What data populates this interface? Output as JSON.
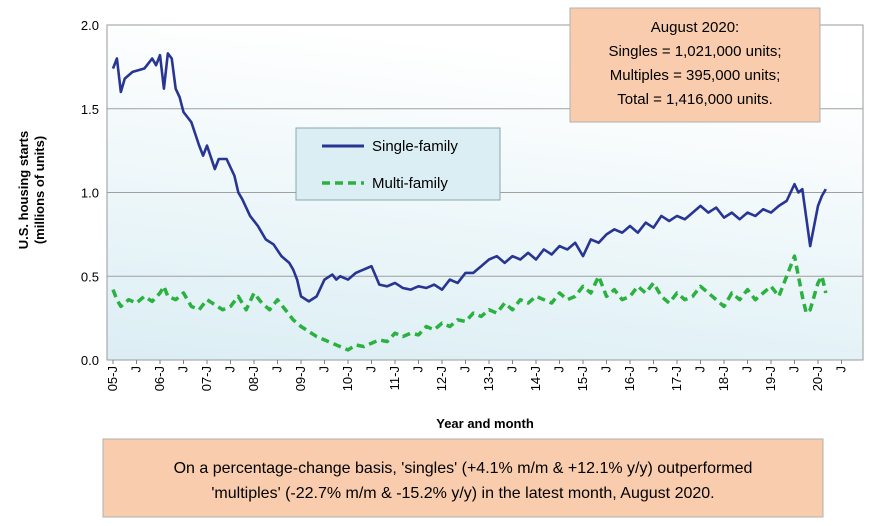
{
  "chart_data": {
    "type": "line",
    "title": "",
    "xlabel": "Year and month",
    "ylabel": "U.S. housing starts (millions of units)",
    "ylabel_lines": [
      "U.S. housing starts",
      "(millions of units)"
    ],
    "ylim": [
      0,
      2.0
    ],
    "yticks": [
      "0.0",
      "0.5",
      "1.0",
      "1.5",
      "2.0"
    ],
    "x_start": "2005-01",
    "x_end": "2020-08",
    "xtick_labels": [
      "05-J",
      "J",
      "06-J",
      "J",
      "07-J",
      "J",
      "08-J",
      "J",
      "09-J",
      "J",
      "10-J",
      "J",
      "11-J",
      "J",
      "12-J",
      "J",
      "13-J",
      "J",
      "14-J",
      "J",
      "15-J",
      "J",
      "16-J",
      "J",
      "17-J",
      "J",
      "18-J",
      "J",
      "19-J",
      "J",
      "20-J",
      "J"
    ],
    "grid": true,
    "legend_position": "upper-middle",
    "series": [
      {
        "name": "Single-family",
        "color": "#283593",
        "style": "solid",
        "keypoints": [
          [
            0,
            1.74
          ],
          [
            1,
            1.8
          ],
          [
            2,
            1.6
          ],
          [
            3,
            1.68
          ],
          [
            5,
            1.72
          ],
          [
            8,
            1.74
          ],
          [
            10,
            1.8
          ],
          [
            11,
            1.76
          ],
          [
            12,
            1.82
          ],
          [
            13,
            1.62
          ],
          [
            14,
            1.83
          ],
          [
            15,
            1.8
          ],
          [
            16,
            1.62
          ],
          [
            17,
            1.57
          ],
          [
            18,
            1.48
          ],
          [
            20,
            1.42
          ],
          [
            21,
            1.35
          ],
          [
            22,
            1.28
          ],
          [
            23,
            1.22
          ],
          [
            24,
            1.28
          ],
          [
            26,
            1.14
          ],
          [
            27,
            1.2
          ],
          [
            29,
            1.2
          ],
          [
            30,
            1.15
          ],
          [
            31,
            1.1
          ],
          [
            32,
            1.0
          ],
          [
            33,
            0.96
          ],
          [
            35,
            0.86
          ],
          [
            37,
            0.8
          ],
          [
            39,
            0.72
          ],
          [
            41,
            0.69
          ],
          [
            43,
            0.62
          ],
          [
            45,
            0.58
          ],
          [
            46,
            0.54
          ],
          [
            47,
            0.48
          ],
          [
            48,
            0.38
          ],
          [
            50,
            0.35
          ],
          [
            52,
            0.38
          ],
          [
            54,
            0.48
          ],
          [
            56,
            0.51
          ],
          [
            57,
            0.48
          ],
          [
            58,
            0.5
          ],
          [
            60,
            0.48
          ],
          [
            62,
            0.52
          ],
          [
            64,
            0.54
          ],
          [
            66,
            0.56
          ],
          [
            68,
            0.45
          ],
          [
            70,
            0.44
          ],
          [
            72,
            0.46
          ],
          [
            74,
            0.43
          ],
          [
            76,
            0.42
          ],
          [
            78,
            0.44
          ],
          [
            80,
            0.43
          ],
          [
            82,
            0.45
          ],
          [
            84,
            0.42
          ],
          [
            86,
            0.48
          ],
          [
            88,
            0.46
          ],
          [
            90,
            0.52
          ],
          [
            92,
            0.52
          ],
          [
            94,
            0.56
          ],
          [
            96,
            0.6
          ],
          [
            98,
            0.62
          ],
          [
            100,
            0.58
          ],
          [
            102,
            0.62
          ],
          [
            104,
            0.6
          ],
          [
            106,
            0.64
          ],
          [
            108,
            0.6
          ],
          [
            110,
            0.66
          ],
          [
            112,
            0.63
          ],
          [
            114,
            0.68
          ],
          [
            116,
            0.66
          ],
          [
            118,
            0.7
          ],
          [
            120,
            0.62
          ],
          [
            122,
            0.72
          ],
          [
            124,
            0.7
          ],
          [
            126,
            0.75
          ],
          [
            128,
            0.78
          ],
          [
            130,
            0.76
          ],
          [
            132,
            0.8
          ],
          [
            134,
            0.76
          ],
          [
            136,
            0.82
          ],
          [
            138,
            0.79
          ],
          [
            140,
            0.86
          ],
          [
            142,
            0.83
          ],
          [
            144,
            0.86
          ],
          [
            146,
            0.84
          ],
          [
            148,
            0.88
          ],
          [
            150,
            0.92
          ],
          [
            152,
            0.88
          ],
          [
            154,
            0.91
          ],
          [
            156,
            0.85
          ],
          [
            158,
            0.88
          ],
          [
            160,
            0.84
          ],
          [
            162,
            0.88
          ],
          [
            164,
            0.86
          ],
          [
            166,
            0.9
          ],
          [
            168,
            0.88
          ],
          [
            170,
            0.92
          ],
          [
            172,
            0.95
          ],
          [
            174,
            1.05
          ],
          [
            175,
            1.0
          ],
          [
            176,
            1.02
          ],
          [
            177,
            0.85
          ],
          [
            178,
            0.68
          ],
          [
            179,
            0.8
          ],
          [
            180,
            0.92
          ],
          [
            181,
            0.98
          ],
          [
            182,
            1.02
          ]
        ]
      },
      {
        "name": "Multi-family",
        "color": "#2ab13f",
        "style": "dashed",
        "keypoints": [
          [
            0,
            0.42
          ],
          [
            1,
            0.36
          ],
          [
            2,
            0.32
          ],
          [
            4,
            0.36
          ],
          [
            6,
            0.34
          ],
          [
            8,
            0.38
          ],
          [
            10,
            0.35
          ],
          [
            12,
            0.4
          ],
          [
            13,
            0.44
          ],
          [
            14,
            0.38
          ],
          [
            16,
            0.36
          ],
          [
            18,
            0.4
          ],
          [
            20,
            0.32
          ],
          [
            22,
            0.3
          ],
          [
            24,
            0.36
          ],
          [
            26,
            0.33
          ],
          [
            28,
            0.3
          ],
          [
            30,
            0.32
          ],
          [
            32,
            0.38
          ],
          [
            34,
            0.3
          ],
          [
            36,
            0.4
          ],
          [
            38,
            0.34
          ],
          [
            40,
            0.3
          ],
          [
            42,
            0.36
          ],
          [
            44,
            0.3
          ],
          [
            46,
            0.24
          ],
          [
            48,
            0.2
          ],
          [
            50,
            0.17
          ],
          [
            52,
            0.14
          ],
          [
            54,
            0.12
          ],
          [
            56,
            0.1
          ],
          [
            58,
            0.08
          ],
          [
            60,
            0.06
          ],
          [
            62,
            0.09
          ],
          [
            64,
            0.08
          ],
          [
            66,
            0.1
          ],
          [
            68,
            0.12
          ],
          [
            70,
            0.11
          ],
          [
            72,
            0.16
          ],
          [
            74,
            0.14
          ],
          [
            76,
            0.16
          ],
          [
            78,
            0.15
          ],
          [
            80,
            0.2
          ],
          [
            82,
            0.18
          ],
          [
            84,
            0.22
          ],
          [
            86,
            0.2
          ],
          [
            88,
            0.24
          ],
          [
            90,
            0.23
          ],
          [
            92,
            0.28
          ],
          [
            94,
            0.26
          ],
          [
            96,
            0.3
          ],
          [
            98,
            0.28
          ],
          [
            100,
            0.34
          ],
          [
            102,
            0.3
          ],
          [
            104,
            0.36
          ],
          [
            106,
            0.34
          ],
          [
            108,
            0.38
          ],
          [
            110,
            0.36
          ],
          [
            112,
            0.34
          ],
          [
            114,
            0.4
          ],
          [
            116,
            0.36
          ],
          [
            118,
            0.38
          ],
          [
            120,
            0.44
          ],
          [
            122,
            0.4
          ],
          [
            124,
            0.5
          ],
          [
            126,
            0.38
          ],
          [
            128,
            0.42
          ],
          [
            130,
            0.36
          ],
          [
            132,
            0.38
          ],
          [
            134,
            0.44
          ],
          [
            136,
            0.4
          ],
          [
            138,
            0.46
          ],
          [
            140,
            0.38
          ],
          [
            142,
            0.34
          ],
          [
            144,
            0.4
          ],
          [
            146,
            0.36
          ],
          [
            148,
            0.38
          ],
          [
            150,
            0.44
          ],
          [
            152,
            0.4
          ],
          [
            154,
            0.36
          ],
          [
            156,
            0.32
          ],
          [
            158,
            0.4
          ],
          [
            160,
            0.36
          ],
          [
            162,
            0.42
          ],
          [
            164,
            0.36
          ],
          [
            166,
            0.4
          ],
          [
            168,
            0.44
          ],
          [
            170,
            0.38
          ],
          [
            172,
            0.5
          ],
          [
            174,
            0.62
          ],
          [
            176,
            0.38
          ],
          [
            177,
            0.28
          ],
          [
            178,
            0.3
          ],
          [
            179,
            0.38
          ],
          [
            180,
            0.46
          ],
          [
            181,
            0.5
          ],
          [
            182,
            0.4
          ]
        ]
      }
    ]
  },
  "callout": {
    "lines": [
      "August 2020:",
      "Singles =  1,021,000 units;",
      "Multiples = 395,000 units;",
      "Total =     1,416,000 units."
    ],
    "fill_color": "#f8ccac"
  },
  "note": {
    "lines": [
      "On a percentage-change basis, 'singles' (+4.1% m/m & +12.1% y/y) outperformed",
      "'multiples' (-22.7% m/m & -15.2% y/y) in the latest month, August 2020."
    ],
    "fill_color": "#f8ccac"
  },
  "colors": {
    "plot_bg_top": "#ffffff",
    "plot_bg_bottom": "#dbeef4",
    "legend_bg": "#dbeef4"
  }
}
